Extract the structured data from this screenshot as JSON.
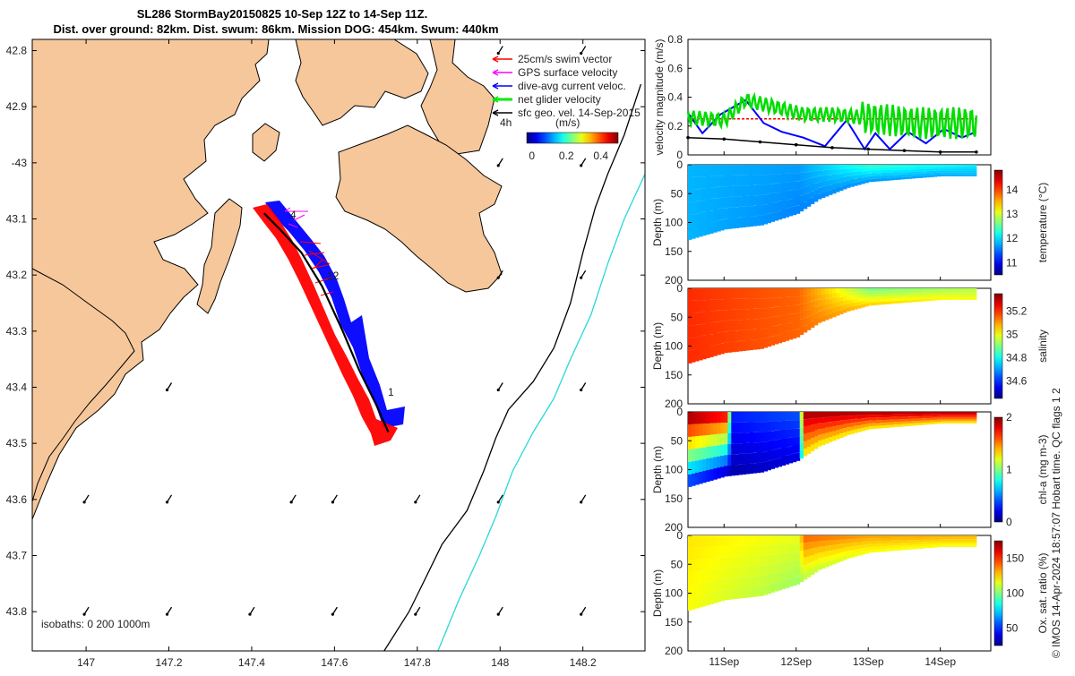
{
  "title": {
    "line1": "SL286 StormBay20150825 10-Sep 12Z to 14-Sep 11Z.",
    "line2": "Dist. over ground: 82km. Dist. swum: 86km. Mission DOG: 454km. Swum: 440km"
  },
  "credit": "© IMOS 14-Apr-2024 18:57:07 Hobart time. QC flags 1  2",
  "colors": {
    "land": "#f6c79a",
    "sea": "#ffffff",
    "iso200": "#000000",
    "iso1000": "#28d8d8",
    "swim": "#ff0000",
    "gps": "#ff00ff",
    "diveavg": "#0000ff",
    "net": "#00ee00",
    "sfc": "#000000"
  },
  "chart_data": [
    {
      "type": "map",
      "name": "track map",
      "xlim": [
        146.87,
        148.35
      ],
      "ylim": [
        43.87,
        42.78
      ],
      "xticks": [
        147,
        147.2,
        147.4,
        147.6,
        147.8,
        148,
        148.2
      ],
      "xtick_labels": [
        "147",
        "147.2",
        "147.4",
        "147.6",
        "147.8",
        "148",
        "148.2"
      ],
      "yticks": [
        42.8,
        42.9,
        43.0,
        43.1,
        43.2,
        43.3,
        43.4,
        43.5,
        43.6,
        43.7,
        43.8
      ],
      "ytick_labels": [
        "42.8",
        "42.9",
        "-43",
        "43.1",
        "43.2",
        "43.3",
        "43.4",
        "43.5",
        "43.6",
        "43.7",
        "43.8"
      ],
      "legend": [
        {
          "key": "swim",
          "label": "25cm/s swim vector"
        },
        {
          "key": "gps",
          "label": "GPS surface velocity"
        },
        {
          "key": "diveavg",
          "label": "dive-avg current veloc."
        },
        {
          "key": "net",
          "label": "net glider velocity"
        },
        {
          "key": "sfc",
          "label": "sfc geo. vel. 14-Sep-2015"
        }
      ],
      "scale_label": "4h",
      "colorbar": {
        "title": "(m/s)",
        "ticks": [
          "0",
          "0.2",
          "0.4"
        ],
        "range": [
          -0.03,
          0.5
        ]
      },
      "isobaths_label": "isobaths: 0   200  1000m",
      "track_labels": [
        "1",
        "12",
        "4"
      ],
      "track": {
        "lon": [
          147.43,
          147.47,
          147.52,
          147.57,
          147.62,
          147.66,
          147.7,
          147.73
        ],
        "lat": [
          43.09,
          43.12,
          43.16,
          43.22,
          43.3,
          43.37,
          43.43,
          43.48
        ]
      },
      "isobath_200": {
        "lon": [
          147.72,
          147.78,
          147.82,
          147.86,
          147.92,
          147.96,
          147.99,
          148.02,
          148.08,
          148.13,
          148.17,
          148.2,
          148.23,
          148.26,
          148.3,
          148.34
        ],
        "lat": [
          43.87,
          43.8,
          43.74,
          43.68,
          43.62,
          43.55,
          43.49,
          43.44,
          43.39,
          43.33,
          43.25,
          43.16,
          43.08,
          43.02,
          42.95,
          42.86
        ]
      },
      "isobath_1000": {
        "lon": [
          147.85,
          147.9,
          147.95,
          147.99,
          148.03,
          148.08,
          148.13,
          148.17,
          148.22,
          148.26,
          148.3,
          148.35
        ],
        "lat": [
          43.87,
          43.78,
          43.7,
          43.63,
          43.55,
          43.48,
          43.42,
          43.35,
          43.27,
          43.18,
          43.1,
          43.02
        ]
      }
    },
    {
      "type": "line",
      "name": "velocity magnitude",
      "ylabel": "velocity magnitude (m/s)",
      "ylim": [
        0,
        0.8
      ],
      "yticks": [
        "0",
        "0.2",
        "0.4",
        "0.6",
        "0.8"
      ],
      "series": [
        {
          "name": "25cm/s swim",
          "color": "#ff0000",
          "x": [
            10.5,
            14.5
          ],
          "values": [
            0.25,
            0.25
          ]
        },
        {
          "name": "dive-avg current",
          "color": "#0000ff",
          "x": [
            10.5,
            10.7,
            10.95,
            11.3,
            11.55,
            11.8,
            12.1,
            12.4,
            12.7,
            12.95,
            13.1,
            13.3,
            13.55,
            13.8,
            14.05,
            14.3,
            14.5
          ],
          "values": [
            0.29,
            0.15,
            0.28,
            0.38,
            0.22,
            0.16,
            0.12,
            0.06,
            0.24,
            0.04,
            0.15,
            0.04,
            0.16,
            0.08,
            0.18,
            0.12,
            0.16
          ]
        },
        {
          "name": "net glider",
          "color": "#00dd00",
          "x": [
            10.5,
            11.0,
            11.3,
            11.8,
            12.1,
            12.5,
            12.9,
            13.3,
            13.7,
            14.1,
            14.5
          ],
          "values": [
            0.26,
            0.24,
            0.38,
            0.32,
            0.28,
            0.28,
            0.26,
            0.24,
            0.22,
            0.22,
            0.22
          ]
        },
        {
          "name": "surface geo.",
          "color": "#000000",
          "x": [
            10.5,
            11.0,
            11.5,
            12.0,
            12.5,
            13.0,
            13.5,
            14.0,
            14.5
          ],
          "values": [
            0.12,
            0.11,
            0.09,
            0.07,
            0.05,
            0.04,
            0.03,
            0.02,
            0.02
          ]
        }
      ]
    },
    {
      "type": "heatmap",
      "name": "temperature section",
      "ylabel": "Depth (m)",
      "yticks": [
        "0",
        "50",
        "100",
        "150",
        "200"
      ],
      "ylim": [
        0,
        200
      ],
      "colorbar_label": "temperature (°C)",
      "colorbar_ticks": [
        "11",
        "12",
        "13",
        "14"
      ],
      "colorbar_range": [
        10.5,
        14.8
      ],
      "bottom_x": [
        10.5,
        11.0,
        11.5,
        12.0,
        12.3,
        12.7,
        13.0,
        13.5,
        14.0,
        14.5
      ],
      "bottom_depth": [
        130,
        112,
        105,
        85,
        60,
        40,
        30,
        25,
        20,
        20
      ],
      "value_x": [
        10.5,
        12.0,
        13.0,
        14.5
      ],
      "value_surface": [
        11.8,
        11.7,
        12.3,
        12.0
      ],
      "value_deep": [
        11.8,
        11.6,
        11.7,
        11.8
      ]
    },
    {
      "type": "heatmap",
      "name": "salinity section",
      "ylabel": "Depth (m)",
      "yticks": [
        "0",
        "50",
        "100",
        "150",
        "200"
      ],
      "ylim": [
        0,
        200
      ],
      "colorbar_label": "salinity",
      "colorbar_ticks": [
        "34.6",
        "34.8",
        "35",
        "35.2"
      ],
      "colorbar_range": [
        34.45,
        35.35
      ],
      "bottom_x": [
        10.5,
        11.0,
        11.5,
        12.0,
        12.3,
        12.7,
        13.0,
        13.5,
        14.0,
        14.5
      ],
      "bottom_depth": [
        130,
        112,
        105,
        85,
        60,
        40,
        30,
        25,
        20,
        20
      ],
      "value_x": [
        10.5,
        12.0,
        13.0,
        14.5
      ],
      "value_surface": [
        35.2,
        35.15,
        34.9,
        34.95
      ],
      "value_deep": [
        35.2,
        35.15,
        35.05,
        35.0
      ]
    },
    {
      "type": "heatmap",
      "name": "chlorophyll section",
      "ylabel": "Depth (m)",
      "yticks": [
        "0",
        "50",
        "100",
        "150",
        "200"
      ],
      "ylim": [
        0,
        200
      ],
      "colorbar_label": "chl-a (mg m-3)",
      "colorbar_ticks": [
        "0",
        "1",
        "2"
      ],
      "colorbar_range": [
        0,
        2
      ],
      "bottom_x": [
        10.5,
        11.0,
        11.5,
        12.0,
        12.3,
        12.7,
        13.0,
        13.5,
        14.0,
        14.5
      ],
      "bottom_depth": [
        130,
        112,
        105,
        85,
        60,
        40,
        30,
        25,
        20,
        20
      ],
      "value_x": [
        10.5,
        11.0,
        11.1,
        12.0,
        12.1,
        14.5
      ],
      "value_surface": [
        1.9,
        1.7,
        0.3,
        0.4,
        1.9,
        1.9
      ],
      "value_deep": [
        0.4,
        0.2,
        0.1,
        0.2,
        1.3,
        1.3
      ]
    },
    {
      "type": "heatmap",
      "name": "oxygen saturation section",
      "ylabel": "Depth (m)",
      "yticks": [
        "0",
        "50",
        "100",
        "150",
        "200"
      ],
      "ylim": [
        0,
        200
      ],
      "colorbar_label": "Ox. sat. ratio (%)",
      "colorbar_ticks": [
        "50",
        "100",
        "150"
      ],
      "colorbar_range": [
        25,
        175
      ],
      "bottom_x": [
        10.5,
        11.0,
        11.5,
        12.0,
        12.3,
        12.7,
        13.0,
        13.5,
        14.0,
        14.5
      ],
      "bottom_depth": [
        130,
        112,
        105,
        85,
        60,
        40,
        30,
        25,
        20,
        20
      ],
      "value_x": [
        10.5,
        12.0,
        12.1,
        13.0,
        14.5
      ],
      "value_surface": [
        122,
        115,
        140,
        132,
        130
      ],
      "value_deep": [
        118,
        105,
        110,
        118,
        118
      ]
    }
  ],
  "time_axis": {
    "range": [
      10.5,
      14.7
    ],
    "ticks": [
      11,
      12,
      13,
      14
    ],
    "tick_labels": [
      "11Sep",
      "12Sep",
      "13Sep",
      "14Sep"
    ]
  }
}
